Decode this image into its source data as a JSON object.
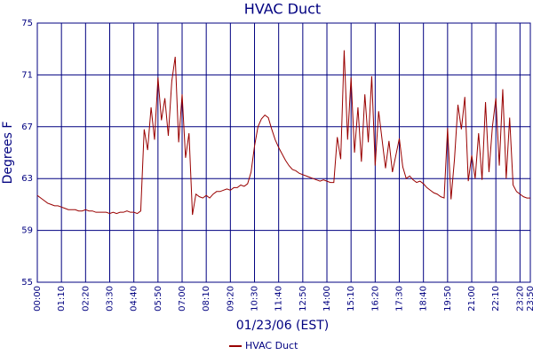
{
  "chart_data": {
    "type": "line",
    "title": "HVAC Duct",
    "x_label": "01/23/06 (EST)",
    "y_label": "Degrees F",
    "x": [
      0,
      10,
      20,
      30,
      40,
      50,
      60,
      70,
      80,
      90,
      100,
      110,
      120,
      130,
      140,
      150,
      160,
      170,
      180,
      190,
      200,
      210,
      220,
      230,
      240,
      250,
      260,
      270,
      280,
      290,
      300,
      310,
      320,
      330,
      340,
      350,
      360,
      370,
      380,
      390,
      400,
      410,
      420,
      430,
      440,
      450,
      460,
      470,
      480,
      490,
      500,
      510,
      520,
      530,
      540,
      550,
      560,
      570,
      580,
      590,
      600,
      610,
      620,
      630,
      640,
      650,
      660,
      670,
      680,
      690,
      700,
      710,
      720,
      730,
      740,
      750,
      760,
      770,
      780,
      790,
      800,
      810,
      820,
      830,
      840,
      850,
      860,
      870,
      880,
      890,
      900,
      910,
      920,
      930,
      940,
      950,
      960,
      970,
      980,
      990,
      1000,
      1010,
      1020,
      1030,
      1040,
      1050,
      1060,
      1070,
      1080,
      1090,
      1100,
      1110,
      1120,
      1130,
      1140,
      1150,
      1160,
      1170,
      1180,
      1190,
      1200,
      1210,
      1220,
      1230,
      1240,
      1250,
      1260,
      1270,
      1280,
      1290,
      1300,
      1310,
      1320,
      1330,
      1340,
      1350,
      1360,
      1370,
      1380,
      1390,
      1400,
      1410,
      1420,
      1430
    ],
    "series": [
      {
        "name": "HVAC Duct",
        "color": "#990000",
        "values": [
          61.7,
          61.5,
          61.3,
          61.1,
          61.0,
          60.9,
          60.9,
          60.8,
          60.7,
          60.6,
          60.6,
          60.6,
          60.5,
          60.5,
          60.6,
          60.5,
          60.5,
          60.4,
          60.4,
          60.4,
          60.4,
          60.3,
          60.4,
          60.3,
          60.4,
          60.4,
          60.5,
          60.4,
          60.4,
          60.3,
          60.5,
          66.8,
          65.2,
          68.5,
          66.0,
          70.8,
          67.5,
          69.2,
          66.3,
          70.5,
          72.4,
          65.8,
          69.5,
          64.6,
          66.5,
          60.2,
          61.8,
          61.6,
          61.5,
          61.7,
          61.5,
          61.8,
          62.0,
          62.0,
          62.1,
          62.2,
          62.1,
          62.3,
          62.3,
          62.5,
          62.4,
          62.6,
          63.5,
          65.5,
          67.0,
          67.6,
          67.9,
          67.7,
          66.8,
          66.0,
          65.4,
          64.9,
          64.4,
          64.0,
          63.7,
          63.6,
          63.4,
          63.3,
          63.2,
          63.1,
          63.0,
          62.9,
          62.8,
          62.9,
          62.8,
          62.7,
          62.7,
          66.2,
          64.5,
          72.9,
          66.0,
          70.8,
          65.0,
          68.5,
          64.3,
          69.5,
          65.8,
          70.9,
          64.0,
          68.2,
          66.0,
          63.8,
          65.9,
          63.5,
          64.8,
          66.1,
          63.9,
          63.0,
          63.2,
          62.9,
          62.7,
          62.8,
          62.6,
          62.3,
          62.1,
          61.9,
          61.8,
          61.6,
          61.5,
          66.9,
          61.4,
          64.5,
          68.7,
          66.8,
          69.3,
          62.8,
          64.8,
          63.0,
          66.5,
          62.9,
          68.9,
          63.5,
          67.0,
          69.2,
          64.0,
          69.9,
          63.0,
          67.7,
          62.5,
          62.0,
          61.8,
          61.6,
          61.5,
          61.5
        ]
      }
    ],
    "xlim": [
      0,
      1430
    ],
    "xticks": [
      {
        "value": 0,
        "label": "00:00"
      },
      {
        "value": 70,
        "label": "01:10"
      },
      {
        "value": 140,
        "label": "02:20"
      },
      {
        "value": 210,
        "label": "03:30"
      },
      {
        "value": 280,
        "label": "04:40"
      },
      {
        "value": 350,
        "label": "05:50"
      },
      {
        "value": 420,
        "label": "07:00"
      },
      {
        "value": 490,
        "label": "08:10"
      },
      {
        "value": 560,
        "label": "09:20"
      },
      {
        "value": 630,
        "label": "10:30"
      },
      {
        "value": 700,
        "label": "11:40"
      },
      {
        "value": 770,
        "label": "12:50"
      },
      {
        "value": 840,
        "label": "14:00"
      },
      {
        "value": 910,
        "label": "15:10"
      },
      {
        "value": 980,
        "label": "16:20"
      },
      {
        "value": 1050,
        "label": "17:30"
      },
      {
        "value": 1120,
        "label": "18:40"
      },
      {
        "value": 1190,
        "label": "19:50"
      },
      {
        "value": 1260,
        "label": "21:00"
      },
      {
        "value": 1330,
        "label": "22:10"
      },
      {
        "value": 1400,
        "label": "23:20"
      },
      {
        "value": 1430,
        "label": "23:50"
      }
    ],
    "ylim": [
      55,
      75
    ],
    "yticks": [
      55,
      59,
      63,
      67,
      71,
      75
    ],
    "grid": true,
    "grid_color": "#000080",
    "legend": "bottom"
  }
}
